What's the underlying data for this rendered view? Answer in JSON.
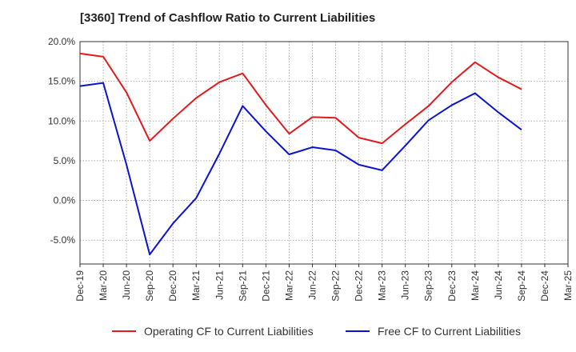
{
  "chart_data": {
    "type": "line",
    "title": "[3360]  Trend of Cashflow Ratio to Current Liabilities",
    "xlabel": "",
    "ylabel": "",
    "categories": [
      "Dec-19",
      "Mar-20",
      "Jun-20",
      "Sep-20",
      "Dec-20",
      "Mar-21",
      "Jun-21",
      "Sep-21",
      "Dec-21",
      "Mar-22",
      "Jun-22",
      "Sep-22",
      "Dec-22",
      "Mar-23",
      "Jun-23",
      "Sep-23",
      "Dec-23",
      "Mar-24",
      "Jun-24",
      "Sep-24",
      "Dec-24",
      "Mar-25"
    ],
    "ylim": [
      -8,
      20
    ],
    "yticks": [
      20,
      15,
      10,
      5,
      0,
      -5
    ],
    "ytick_labels": [
      "20.0%",
      "15.0%",
      "10.0%",
      "5.0%",
      "0.0%",
      "-5.0%"
    ],
    "grid": true,
    "legend_position": "bottom",
    "series": [
      {
        "name": "Operating CF to Current Liabilities",
        "color": "#e31a1c",
        "values": [
          18.5,
          18.1,
          13.6,
          7.5,
          10.3,
          12.9,
          14.9,
          16.0,
          12.0,
          8.4,
          10.5,
          10.4,
          7.9,
          7.2,
          9.6,
          11.9,
          14.9,
          17.4,
          15.5,
          14.0,
          null,
          null
        ]
      },
      {
        "name": "Free CF to Current Liabilities",
        "color": "#0a14d2",
        "values": [
          14.4,
          14.8,
          4.5,
          -6.8,
          -2.9,
          0.3,
          5.9,
          11.9,
          8.7,
          5.8,
          6.7,
          6.3,
          4.5,
          3.8,
          6.9,
          10.1,
          12.0,
          13.5,
          11.1,
          8.9,
          null,
          null
        ]
      }
    ]
  }
}
